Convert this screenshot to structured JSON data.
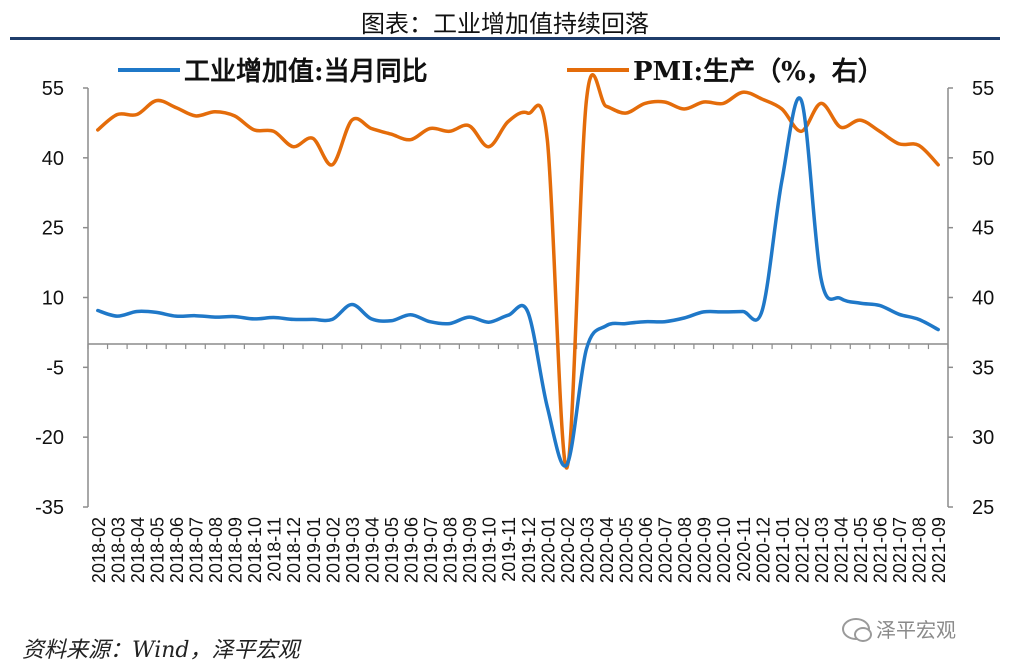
{
  "header": {
    "title": "图表：工业增加值持续回落"
  },
  "footer": {
    "source": "资料来源：Wind，泽平宏观",
    "watermark": "泽平宏观"
  },
  "colors": {
    "blue": "#1f78c8",
    "orange": "#e46c0a",
    "axis": "#8c8c8c",
    "rule": "#1f3d6b"
  },
  "chart_data": {
    "type": "line",
    "title": "图表：工业增加值持续回落",
    "legend_position": "top",
    "grid": false,
    "x": [
      "2018-02",
      "2018-03",
      "2018-04",
      "2018-05",
      "2018-06",
      "2018-07",
      "2018-08",
      "2018-09",
      "2018-10",
      "2018-11",
      "2018-12",
      "2019-01",
      "2019-02",
      "2019-03",
      "2019-04",
      "2019-05",
      "2019-06",
      "2019-07",
      "2019-08",
      "2019-09",
      "2019-10",
      "2019-11",
      "2019-12",
      "2020-01",
      "2020-02",
      "2020-03",
      "2020-04",
      "2020-05",
      "2020-06",
      "2020-07",
      "2020-08",
      "2020-09",
      "2020-10",
      "2020-11",
      "2020-12",
      "2021-01",
      "2021-02",
      "2021-03",
      "2021-04",
      "2021-05",
      "2021-06",
      "2021-07",
      "2021-08",
      "2021-09"
    ],
    "left_axis": {
      "ylim": [
        -35,
        55
      ],
      "ticks": [
        55,
        40,
        25,
        10,
        -5,
        -20,
        -35
      ]
    },
    "right_axis": {
      "ylim": [
        25,
        55
      ],
      "ticks": [
        55,
        50,
        45,
        40,
        35,
        30,
        25
      ]
    },
    "series": [
      {
        "name": "工业增加值:当月同比",
        "axis": "left",
        "color": "#1f78c8",
        "values": [
          7.2,
          6.0,
          7.0,
          6.8,
          6.0,
          6.1,
          5.8,
          5.9,
          5.4,
          5.7,
          5.3,
          5.3,
          5.3,
          8.5,
          5.4,
          5.0,
          6.3,
          4.8,
          4.4,
          5.8,
          4.7,
          6.2,
          6.9,
          -13.5,
          -25.9,
          -1.1,
          3.9,
          4.4,
          4.8,
          4.8,
          5.6,
          6.9,
          6.9,
          7.0,
          7.3,
          35.1,
          52.3,
          14.1,
          9.8,
          8.8,
          8.3,
          6.4,
          5.3,
          3.1
        ]
      },
      {
        "name": "PMI:生产（%，右）",
        "axis": "right",
        "color": "#e46c0a",
        "values": [
          52.0,
          53.1,
          53.1,
          54.1,
          53.6,
          53.0,
          53.3,
          53.0,
          52.0,
          51.9,
          50.8,
          51.4,
          49.5,
          52.7,
          52.1,
          51.7,
          51.3,
          52.1,
          51.9,
          52.3,
          50.8,
          52.6,
          53.2,
          51.3,
          27.8,
          54.1,
          53.7,
          53.2,
          53.9,
          54.0,
          53.5,
          54.0,
          53.9,
          54.7,
          54.2,
          53.5,
          51.9,
          53.9,
          52.2,
          52.7,
          51.9,
          51.0,
          50.9,
          49.5
        ]
      }
    ]
  }
}
